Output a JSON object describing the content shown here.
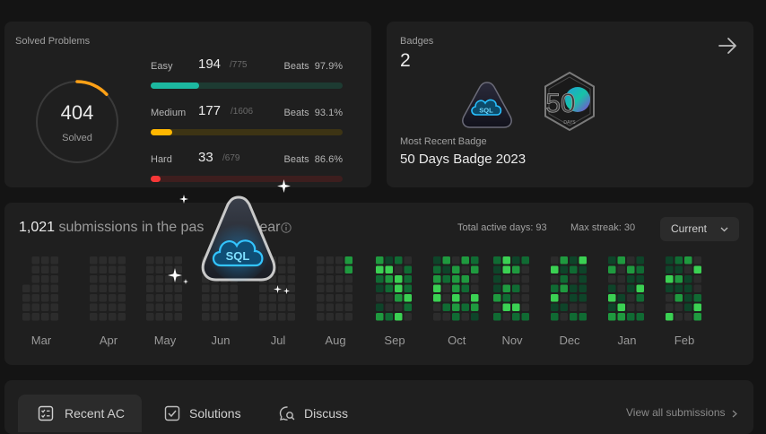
{
  "solved": {
    "title": "Solved Problems",
    "count": "404",
    "sub": "Solved",
    "ring_progress": 0.13,
    "rows": [
      {
        "name": "Easy",
        "num": "194",
        "total": "/775",
        "beats_label": "Beats",
        "beats_value": "97.9%",
        "fill": 0.25,
        "color": "#1cb8a0",
        "track": "#1d3b32"
      },
      {
        "name": "Medium",
        "num": "177",
        "total": "/1606",
        "beats_label": "Beats",
        "beats_value": "93.1%",
        "fill": 0.11,
        "color": "#ffb700",
        "track": "#3d3414"
      },
      {
        "name": "Hard",
        "num": "33",
        "total": "/679",
        "beats_label": "Beats",
        "beats_value": "86.6%",
        "fill": 0.05,
        "color": "#f63737",
        "track": "#3d1e1e"
      }
    ]
  },
  "badges": {
    "title": "Badges",
    "count": "2",
    "recent_label": "Most Recent Badge",
    "recent_name": "50 Days Badge 2023",
    "sql_badge_text": "SQL",
    "days_badge_text": "50",
    "days_badge_sub": "DAYS"
  },
  "calendar": {
    "count": "1,021",
    "text_a": " submissions in the pas",
    "text_b": "year",
    "active_days": "Total active days: 93",
    "max_streak": "Max streak: 30",
    "period": "Current",
    "months": [
      "Mar",
      "Apr",
      "May",
      "Jun",
      "Jul",
      "Aug",
      "Sep",
      "Oct",
      "Nov",
      "Dec",
      "Jan",
      "Feb"
    ],
    "colors": {
      "empty": "#2c2c2c",
      "l1": "#0e4429",
      "l2": "#106b33",
      "l3": "#1f9a3f",
      "l4": "#3bd153"
    }
  },
  "overlay": {
    "badge_text": "SQL"
  },
  "tabs": {
    "items": [
      {
        "label": "Recent AC"
      },
      {
        "label": "Solutions"
      },
      {
        "label": "Discuss"
      }
    ],
    "view_all": "View all submissions"
  }
}
